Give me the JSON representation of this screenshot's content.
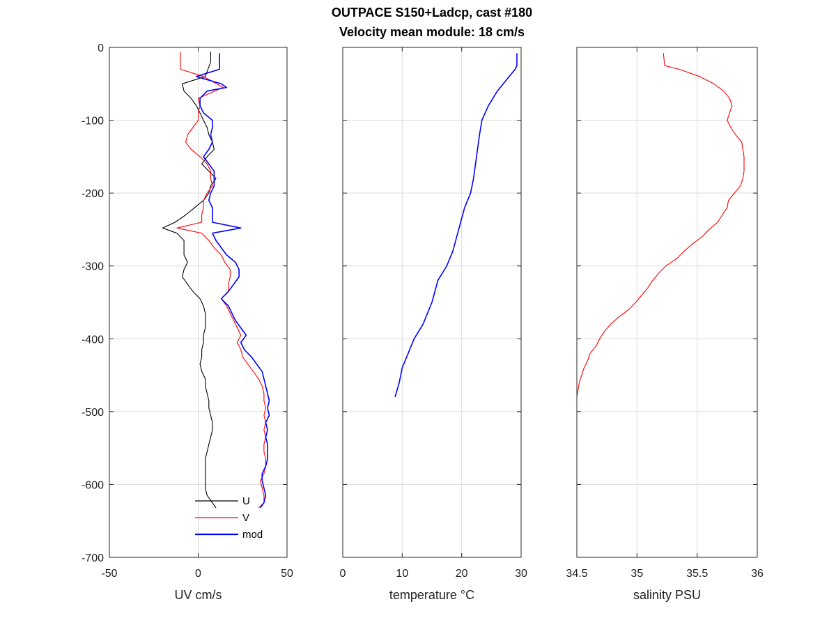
{
  "chart_data": {
    "title": "OUTPACE S150+Ladcp, cast #180",
    "subtitle": "Velocity mean module:  18 cm/s",
    "ylim": [
      -700,
      0
    ],
    "yticks": [
      0,
      -100,
      -200,
      -300,
      -400,
      -500,
      -600,
      -700
    ],
    "panels": [
      {
        "type": "line",
        "xlabel": "UV cm/s",
        "xlim": [
          -50,
          50
        ],
        "xticks": [
          -50,
          0,
          50
        ],
        "grid": true,
        "legend": {
          "placement": "bottom-left",
          "entries": [
            "U",
            "V",
            "mod"
          ]
        },
        "series": [
          {
            "name": "U",
            "color": "#000000",
            "depth": [
              -6,
              -20,
              -40,
              -50,
              -60,
              -70,
              -80,
              -90,
              -100,
              -110,
              -120,
              -130,
              -140,
              -150,
              -160,
              -170,
              -180,
              -190,
              -200,
              -210,
              -220,
              -230,
              -240,
              -248,
              -255,
              -265,
              -275,
              -285,
              -295,
              -305,
              -315,
              -325,
              -335,
              -345,
              -355,
              -365,
              -375,
              -385,
              -395,
              -405,
              -415,
              -425,
              -435,
              -445,
              -455,
              -465,
              -475,
              -485,
              -495,
              -505,
              -515,
              -525,
              -535,
              -545,
              -555,
              -565,
              -575,
              -585,
              -595,
              -605,
              -615,
              -632
            ],
            "values": [
              7,
              7,
              4,
              -9,
              -8,
              -4,
              -1,
              1,
              3,
              5,
              6,
              8,
              9,
              5,
              2,
              6,
              10,
              7,
              6,
              3,
              -2,
              -7,
              -13,
              -20,
              -12,
              -8,
              -8,
              -8,
              -6,
              -8,
              -9,
              -6,
              -3,
              1,
              3,
              4,
              4,
              4,
              3,
              3,
              2,
              2,
              1,
              2,
              4,
              4,
              5,
              6,
              6,
              7,
              8,
              8,
              7,
              6,
              5,
              4,
              4,
              4,
              4,
              4,
              5,
              10
            ]
          },
          {
            "name": "V",
            "color": "#ff0000",
            "depth": [
              -6,
              -30,
              -40,
              -55,
              -70,
              -80,
              -90,
              -100,
              -110,
              -120,
              -130,
              -140,
              -150,
              -160,
              -170,
              -180,
              -190,
              -200,
              -210,
              -220,
              -230,
              -240,
              -248,
              -255,
              -265,
              -275,
              -285,
              -295,
              -305,
              -315,
              -325,
              -335,
              -345,
              -355,
              -365,
              -375,
              -385,
              -395,
              -405,
              -415,
              -425,
              -435,
              -445,
              -455,
              -465,
              -475,
              -485,
              -495,
              -505,
              -515,
              -525,
              -535,
              -545,
              -555,
              -565,
              -575,
              -585,
              -595,
              -605,
              -615,
              -625,
              -632
            ],
            "values": [
              -10,
              -10,
              3,
              14,
              0,
              1,
              0,
              0,
              -3,
              -6,
              -7,
              -4,
              1,
              5,
              7,
              7,
              8,
              5,
              3,
              3,
              2,
              2,
              -12,
              2,
              6,
              9,
              13,
              15,
              18,
              18,
              17,
              17,
              13,
              16,
              18,
              20,
              22,
              24,
              22,
              24,
              25,
              28,
              31,
              34,
              36,
              37,
              37,
              38,
              37,
              38,
              37,
              38,
              37,
              37,
              38,
              38,
              37,
              35,
              36,
              37,
              37,
              34
            ]
          },
          {
            "name": "mod",
            "color": "#0000ff",
            "depth": [
              -8,
              -20,
              -30,
              -40,
              -50,
              -55,
              -60,
              -70,
              -80,
              -90,
              -100,
              -110,
              -120,
              -130,
              -140,
              -150,
              -160,
              -170,
              -180,
              -190,
              -200,
              -210,
              -220,
              -230,
              -240,
              -248,
              -255,
              -265,
              -275,
              -285,
              -295,
              -305,
              -315,
              -325,
              -335,
              -345,
              -355,
              -365,
              -375,
              -385,
              -395,
              -405,
              -415,
              -425,
              -435,
              -445,
              -455,
              -465,
              -475,
              -485,
              -495,
              -505,
              -515,
              -525,
              -535,
              -545,
              -555,
              -565,
              -575,
              -585,
              -595,
              -605,
              -615,
              -625,
              -632
            ],
            "values": [
              12,
              12,
              12,
              -1,
              13,
              16,
              5,
              1,
              1,
              3,
              8,
              8,
              7,
              8,
              6,
              3,
              6,
              9,
              9,
              9,
              7,
              6,
              8,
              8,
              8,
              24,
              8,
              10,
              13,
              16,
              21,
              23,
              23,
              20,
              17,
              13,
              17,
              19,
              21,
              24,
              27,
              24,
              26,
              30,
              33,
              36,
              37,
              38,
              39,
              40,
              39,
              40,
              38,
              39,
              38,
              39,
              39,
              39,
              38,
              36,
              36,
              37,
              38,
              37,
              35
            ]
          }
        ]
      },
      {
        "type": "line",
        "xlabel": "temperature °C",
        "xlim": [
          0,
          30
        ],
        "xticks": [
          0,
          10,
          20,
          30
        ],
        "grid": true,
        "series": [
          {
            "color": "#0000ff",
            "depth": [
              -8,
              -25,
              -30,
              -40,
              -50,
              -60,
              -80,
              -100,
              -120,
              -150,
              -180,
              -200,
              -220,
              -250,
              -280,
              -300,
              -320,
              -350,
              -380,
              -400,
              -420,
              -440,
              -460,
              -480
            ],
            "values": [
              29.3,
              29.3,
              29.0,
              28.0,
              27.0,
              26.0,
              24.5,
              23.4,
              23.0,
              22.5,
              22.0,
              21.5,
              20.5,
              19.5,
              18.5,
              17.5,
              16.0,
              15.0,
              13.5,
              12.0,
              11.0,
              10.0,
              9.5,
              8.8
            ]
          }
        ]
      },
      {
        "type": "line",
        "xlabel": "salinity PSU",
        "xlim": [
          34.5,
          36
        ],
        "xticks": [
          34.5,
          35,
          35.5,
          36
        ],
        "grid": true,
        "series": [
          {
            "color": "#ff0000",
            "depth": [
              -8,
              -25,
              -30,
              -40,
              -50,
              -60,
              -70,
              -80,
              -90,
              -100,
              -110,
              -120,
              -130,
              -140,
              -150,
              -160,
              -170,
              -180,
              -190,
              -200,
              -210,
              -220,
              -230,
              -240,
              -250,
              -260,
              -270,
              -280,
              -290,
              -300,
              -310,
              -320,
              -330,
              -340,
              -350,
              -360,
              -370,
              -380,
              -390,
              -400,
              -410,
              -420,
              -430,
              -440,
              -450,
              -460,
              -470,
              -480
            ],
            "values": [
              35.22,
              35.23,
              35.35,
              35.52,
              35.64,
              35.72,
              35.77,
              35.79,
              35.77,
              35.75,
              35.78,
              35.82,
              35.87,
              35.88,
              35.89,
              35.89,
              35.89,
              35.88,
              35.86,
              35.81,
              35.76,
              35.75,
              35.71,
              35.67,
              35.6,
              35.54,
              35.46,
              35.39,
              35.33,
              35.24,
              35.18,
              35.13,
              35.09,
              35.04,
              34.99,
              34.93,
              34.85,
              34.78,
              34.73,
              34.69,
              34.66,
              34.61,
              34.59,
              34.56,
              34.54,
              34.52,
              34.51,
              34.5
            ]
          }
        ]
      }
    ]
  }
}
